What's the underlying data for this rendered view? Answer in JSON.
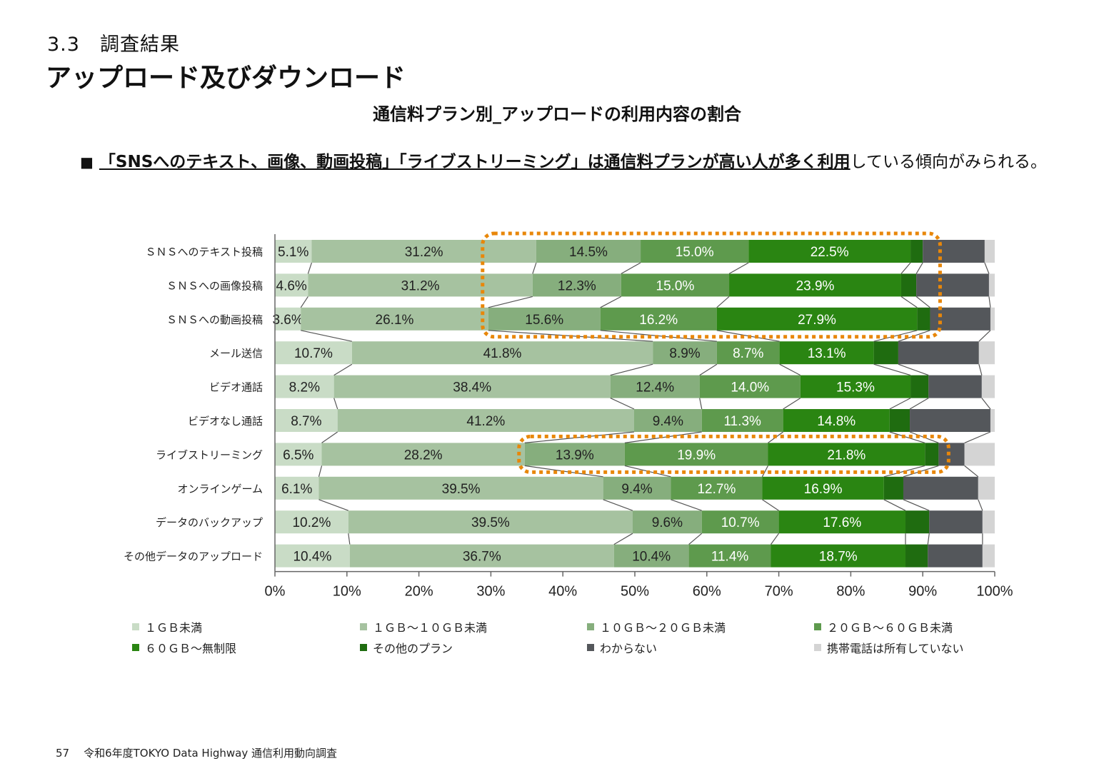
{
  "header": {
    "section_number": "3.3　調査結果",
    "section_title": "アップロード及びダウンロード"
  },
  "summary": {
    "bullet": "■",
    "emphasis": "「SNSへのテキスト、画像、動画投稿」「ライブストリーミング」は通信料プランが高い人が多く利用",
    "rest": "している傾向がみられる。"
  },
  "footer": {
    "page_number": "57",
    "text": "令和6年度TOKYO Data Highway 通信利用動向調査"
  },
  "colors": {
    "highlight_dotted": "#e8870a"
  },
  "chart_data": {
    "type": "bar",
    "orientation": "horizontal",
    "stacked": "100%",
    "title": "通信料プラン別_アップロードの利用内容の割合",
    "categories": [
      "ＳＮＳへのテキスト投稿",
      "ＳＮＳへの画像投稿",
      "ＳＮＳへの動画投稿",
      "メール送信",
      "ビデオ通話",
      "ビデオなし通話",
      "ライブストリーミング",
      "オンラインゲーム",
      "データのバックアップ",
      "その他データのアップロード"
    ],
    "series": [
      {
        "name": "１ＧＢ未満",
        "color": "#c9dcc6",
        "values": [
          5.1,
          4.6,
          3.6,
          10.7,
          8.2,
          8.7,
          6.5,
          6.1,
          10.2,
          10.4
        ]
      },
      {
        "name": "１ＧＢ～１０ＧＢ未満",
        "color": "#a6c2a0",
        "values": [
          31.2,
          31.2,
          26.1,
          41.8,
          38.4,
          41.2,
          28.2,
          39.5,
          39.5,
          36.7
        ]
      },
      {
        "name": "１０ＧＢ～２０ＧＢ未満",
        "color": "#86ae7d",
        "values": [
          14.5,
          12.3,
          15.6,
          8.9,
          12.4,
          9.4,
          13.9,
          9.4,
          9.6,
          10.4
        ]
      },
      {
        "name": "２０ＧＢ～６０ＧＢ未満",
        "color": "#5e9a4d",
        "values": [
          15.0,
          15.0,
          16.2,
          8.7,
          14.0,
          11.3,
          19.9,
          12.7,
          10.7,
          11.4
        ]
      },
      {
        "name": "６０ＧＢ～無制限",
        "color": "#2a8512",
        "values": [
          22.5,
          23.9,
          27.9,
          13.1,
          15.3,
          14.8,
          21.8,
          16.9,
          17.6,
          18.7
        ]
      },
      {
        "name": "その他のプラン",
        "color": "#1f6c10",
        "values": [
          1.7,
          2.1,
          1.8,
          3.4,
          2.5,
          2.8,
          1.9,
          2.7,
          3.3,
          3.1
        ]
      },
      {
        "name": "わからない",
        "color": "#54575b",
        "values": [
          8.6,
          10.1,
          8.4,
          11.2,
          7.4,
          11.2,
          3.6,
          10.4,
          7.4,
          7.6
        ]
      },
      {
        "name": "携帯電話は所有していない",
        "color": "#d4d4d4",
        "values": [
          1.4,
          0.8,
          0.6,
          2.2,
          1.8,
          0.6,
          4.2,
          2.3,
          1.7,
          1.7
        ]
      }
    ],
    "labeled_series_count": 5,
    "xlim": [
      0,
      100
    ],
    "x_ticks": [
      "0%",
      "10%",
      "20%",
      "30%",
      "40%",
      "50%",
      "60%",
      "70%",
      "80%",
      "90%",
      "100%"
    ],
    "legend_position": "bottom",
    "highlights": [
      {
        "categories": [
          0,
          1,
          2
        ],
        "from_series": 2,
        "to_series": 5
      },
      {
        "categories": [
          6
        ],
        "from_series": 2,
        "to_series": 5
      }
    ]
  }
}
